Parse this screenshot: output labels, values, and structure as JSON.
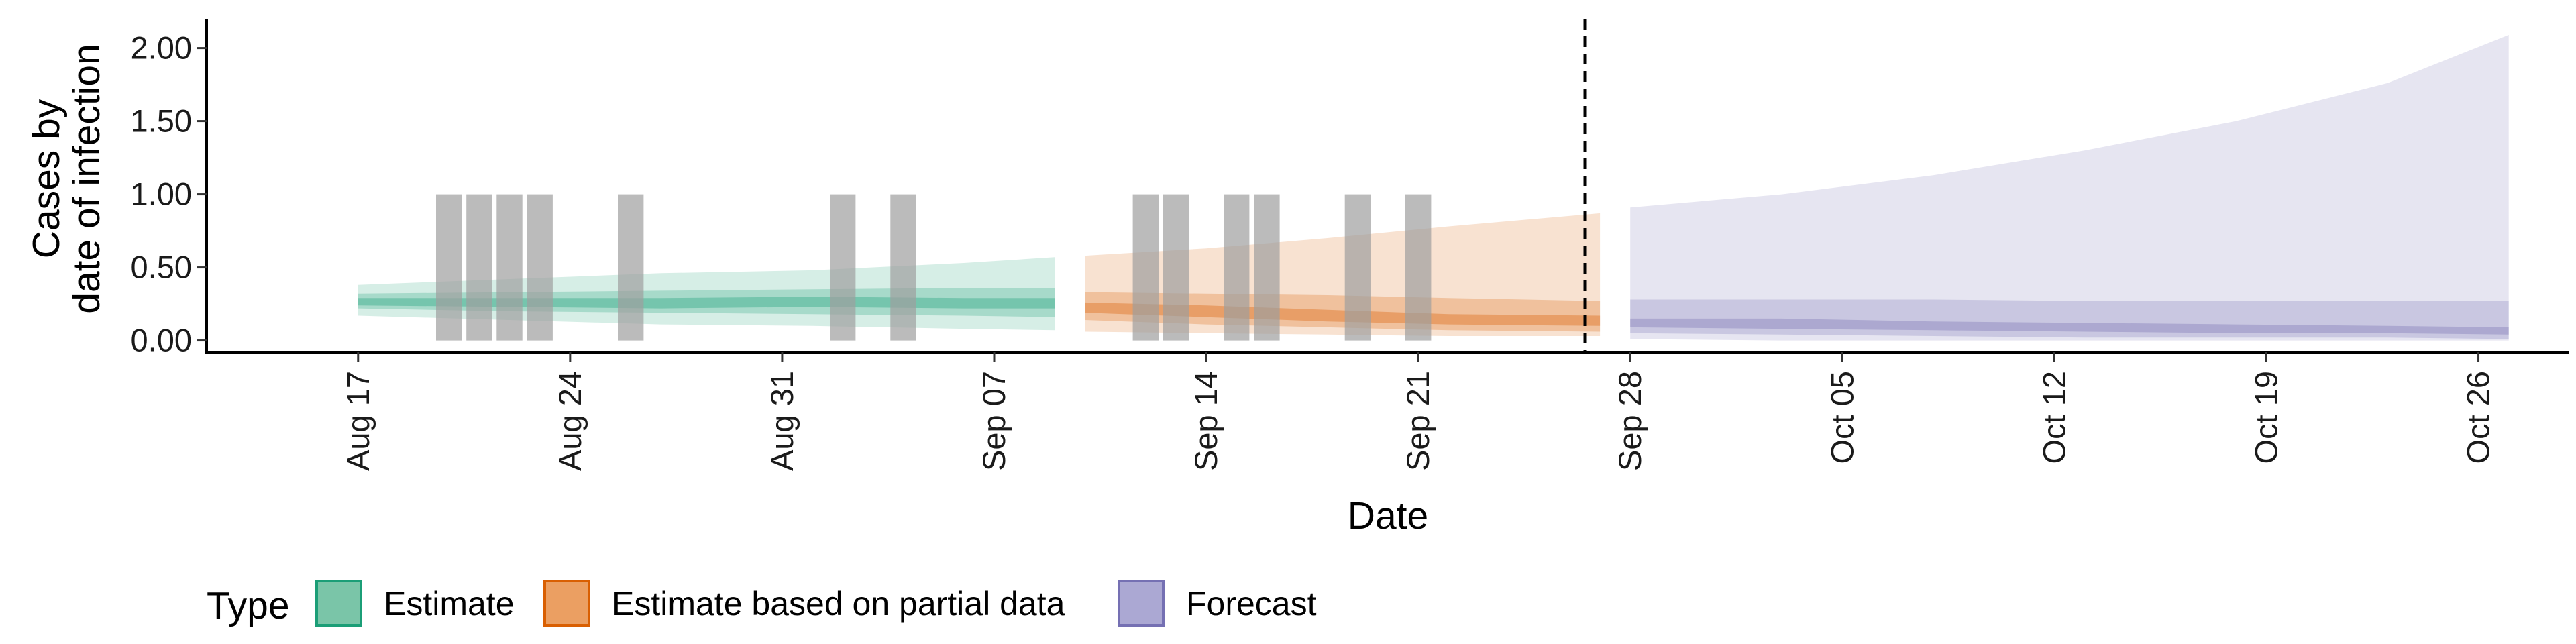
{
  "chart_data": {
    "type": "area",
    "xlabel": "Date",
    "ylabel_lines": [
      "Cases by",
      "date of infection"
    ],
    "ylim": [
      -0.08,
      2.2
    ],
    "y_ticks": [
      0,
      0.5,
      1.0,
      1.5,
      2.0
    ],
    "y_tick_labels": [
      "0.00",
      "0.50",
      "1.00",
      "1.50",
      "2.00"
    ],
    "xlim": [
      "2020-08-12",
      "2020-10-29"
    ],
    "x_ticks": [
      "2020-08-17",
      "2020-08-24",
      "2020-08-31",
      "2020-09-07",
      "2020-09-14",
      "2020-09-21",
      "2020-09-28",
      "2020-10-05",
      "2020-10-12",
      "2020-10-19",
      "2020-10-26"
    ],
    "x_tick_labels": [
      "Aug 17",
      "Aug 24",
      "Aug 31",
      "Sep 07",
      "Sep 14",
      "Sep 21",
      "Sep 28",
      "Oct 05",
      "Oct 12",
      "Oct 19",
      "Oct 26"
    ],
    "legend": {
      "title": "Type",
      "position": "bottom",
      "entries": [
        {
          "label": "Estimate",
          "fill": "#7ac5a8",
          "stroke": "#1b9e77"
        },
        {
          "label": "Estimate based on partial data",
          "fill": "#eb9f62",
          "stroke": "#d95f02"
        },
        {
          "label": "Forecast",
          "fill": "#aba8d3",
          "stroke": "#7570b3"
        }
      ]
    },
    "reported_cases": {
      "color": "#9e9e9e",
      "bars": [
        {
          "date": "2020-08-20",
          "value": 1.0
        },
        {
          "date": "2020-08-21",
          "value": 1.0
        },
        {
          "date": "2020-08-22",
          "value": 1.0
        },
        {
          "date": "2020-08-23",
          "value": 1.0
        },
        {
          "date": "2020-08-26",
          "value": 1.0
        },
        {
          "date": "2020-09-02",
          "value": 1.0
        },
        {
          "date": "2020-09-04",
          "value": 1.0
        },
        {
          "date": "2020-09-12",
          "value": 1.0
        },
        {
          "date": "2020-09-13",
          "value": 1.0
        },
        {
          "date": "2020-09-15",
          "value": 1.0
        },
        {
          "date": "2020-09-16",
          "value": 1.0
        },
        {
          "date": "2020-09-19",
          "value": 1.0
        },
        {
          "date": "2020-09-21",
          "value": 1.0
        }
      ]
    },
    "forecast_start_line": "2020-09-27",
    "series": [
      {
        "name": "Estimate",
        "color": "#1b9e77",
        "dates": [
          "2020-08-17",
          "2020-08-22",
          "2020-08-27",
          "2020-09-01",
          "2020-09-06",
          "2020-09-09"
        ],
        "bands": [
          {
            "opacity": 0.18,
            "lower": [
              0.17,
              0.14,
              0.11,
              0.1,
              0.08,
              0.07
            ],
            "upper": [
              0.38,
              0.42,
              0.46,
              0.48,
              0.53,
              0.57
            ]
          },
          {
            "opacity": 0.25,
            "lower": [
              0.22,
              0.2,
              0.19,
              0.18,
              0.17,
              0.16
            ],
            "upper": [
              0.32,
              0.33,
              0.34,
              0.35,
              0.36,
              0.36
            ]
          },
          {
            "opacity": 0.35,
            "lower": [
              0.24,
              0.23,
              0.22,
              0.23,
              0.22,
              0.22
            ],
            "upper": [
              0.29,
              0.29,
              0.29,
              0.3,
              0.29,
              0.29
            ]
          }
        ]
      },
      {
        "name": "Estimate based on partial data",
        "color": "#d95f02",
        "dates": [
          "2020-09-10",
          "2020-09-14",
          "2020-09-18",
          "2020-09-22",
          "2020-09-27"
        ],
        "bands": [
          {
            "opacity": 0.18,
            "lower": [
              0.06,
              0.05,
              0.04,
              0.03,
              0.03
            ],
            "upper": [
              0.58,
              0.63,
              0.7,
              0.78,
              0.87
            ]
          },
          {
            "opacity": 0.25,
            "lower": [
              0.14,
              0.11,
              0.09,
              0.07,
              0.06
            ],
            "upper": [
              0.33,
              0.32,
              0.31,
              0.29,
              0.27
            ]
          },
          {
            "opacity": 0.35,
            "lower": [
              0.19,
              0.16,
              0.13,
              0.11,
              0.1
            ],
            "upper": [
              0.26,
              0.24,
              0.21,
              0.18,
              0.17
            ]
          }
        ]
      },
      {
        "name": "Forecast",
        "color": "#7570b3",
        "dates": [
          "2020-09-28",
          "2020-10-03",
          "2020-10-08",
          "2020-10-13",
          "2020-10-18",
          "2020-10-23",
          "2020-10-27"
        ],
        "bands": [
          {
            "opacity": 0.18,
            "lower": [
              0.01,
              0.0,
              0.0,
              0.0,
              0.0,
              0.0,
              0.0
            ],
            "upper": [
              0.91,
              1.0,
              1.13,
              1.3,
              1.5,
              1.76,
              2.09
            ]
          },
          {
            "opacity": 0.25,
            "lower": [
              0.05,
              0.04,
              0.03,
              0.02,
              0.02,
              0.02,
              0.01
            ],
            "upper": [
              0.28,
              0.28,
              0.28,
              0.27,
              0.27,
              0.27,
              0.27
            ]
          },
          {
            "opacity": 0.35,
            "lower": [
              0.09,
              0.08,
              0.07,
              0.06,
              0.05,
              0.05,
              0.04
            ],
            "upper": [
              0.15,
              0.15,
              0.13,
              0.12,
              0.11,
              0.1,
              0.09
            ]
          }
        ]
      }
    ]
  }
}
